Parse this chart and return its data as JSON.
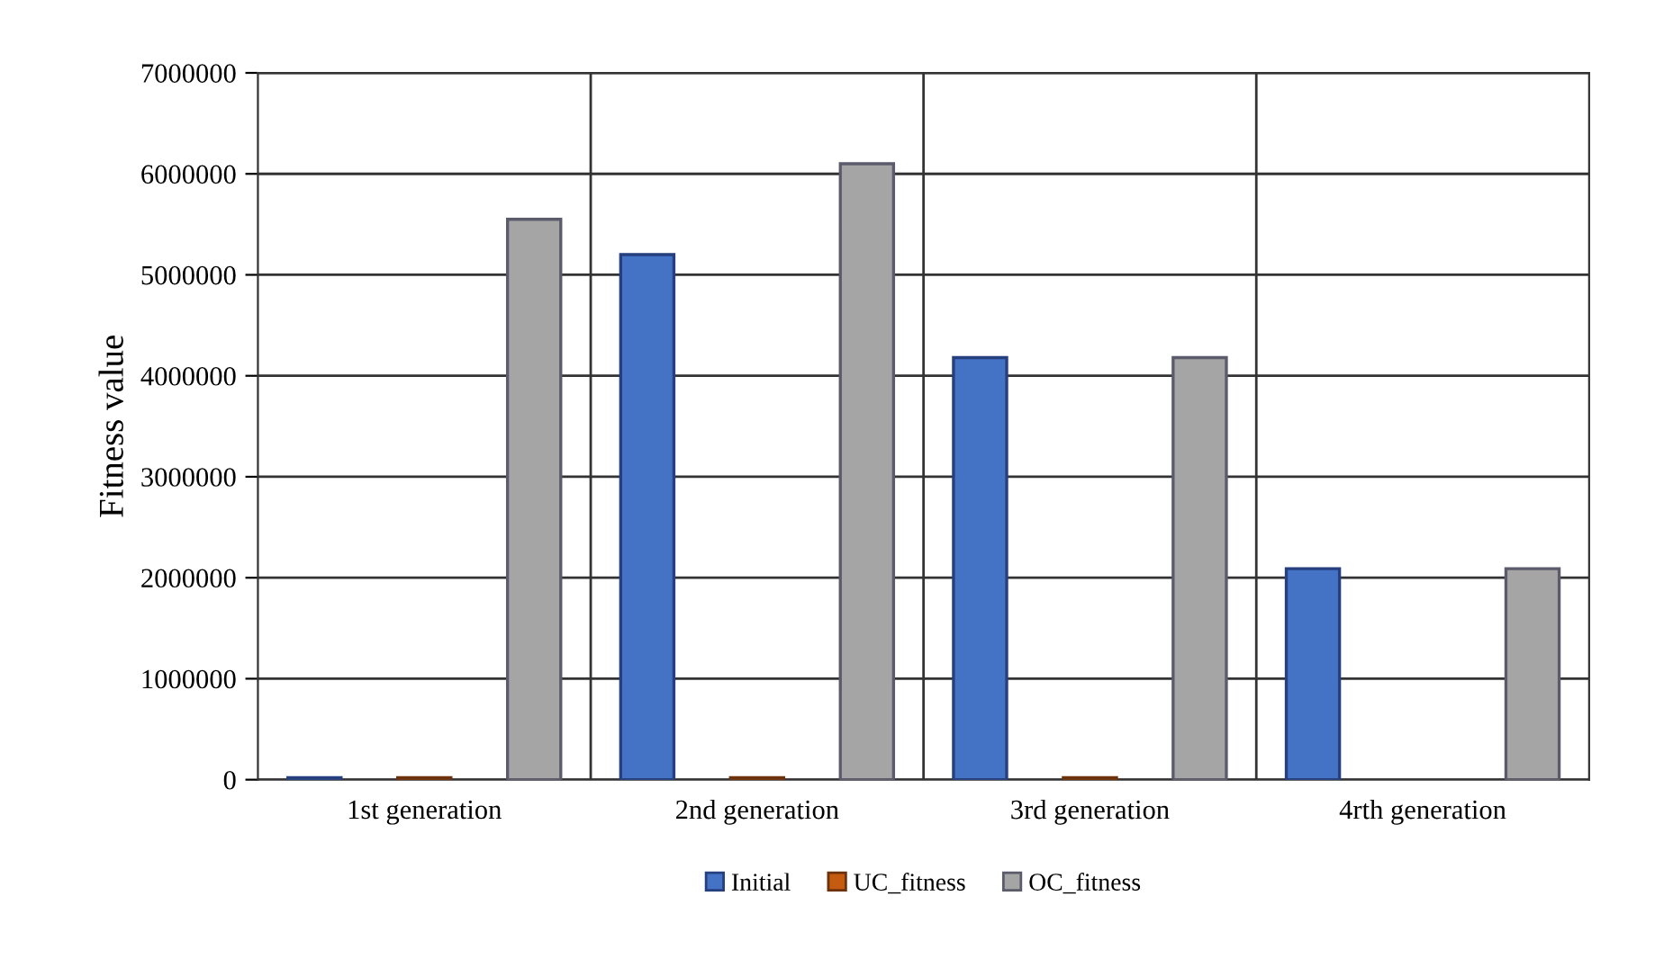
{
  "chart_data": {
    "type": "bar",
    "ylabel": "Fitness value",
    "categories": [
      "1st generation",
      "2nd generation",
      "3rd generation",
      "4rth generation"
    ],
    "series": [
      {
        "name": "Initial",
        "color": "#4472c4",
        "values": [
          20000,
          5200000,
          4180000,
          2090000
        ]
      },
      {
        "name": "UC_fitness",
        "color": "#c55a11",
        "values": [
          20000,
          20000,
          20000,
          null
        ]
      },
      {
        "name": "OC_fitness",
        "color": "#a5a5a5",
        "values": [
          5550000,
          6100000,
          4180000,
          2090000
        ]
      }
    ],
    "ylim": [
      0,
      7000000
    ],
    "yticks": [
      0,
      1000000,
      2000000,
      3000000,
      4000000,
      5000000,
      6000000,
      7000000
    ],
    "grid": true,
    "legend": "bottom"
  }
}
